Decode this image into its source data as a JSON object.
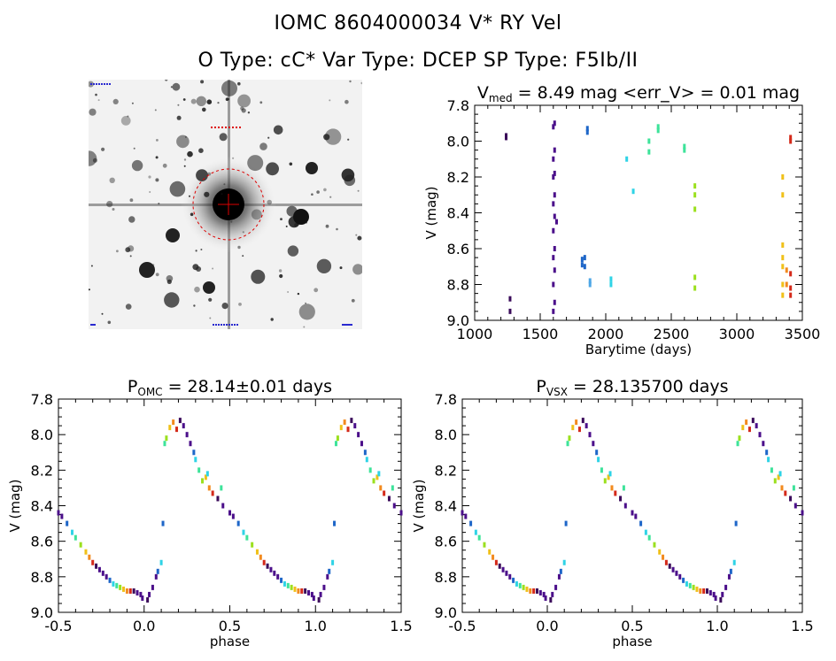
{
  "header": {
    "title": "IOMC 8604000034    V* RY Vel",
    "subtitle": "O Type: cC*   Var Type: DCEP   SP Type: F5Ib/II"
  },
  "sky_image": {
    "description": "finder chart"
  },
  "chart_data": [
    {
      "type": "scatter",
      "id": "lightcurve",
      "title": {
        "pre": "V",
        "sub": "med",
        "post": " = 8.49 mag <err_V> = 0.01 mag"
      },
      "xlabel": "Barytime (days)",
      "ylabel": "V (mag)",
      "xlim": [
        1000,
        3500
      ],
      "ylim": [
        9.0,
        7.8
      ],
      "xticks": [
        1000,
        1500,
        2000,
        2500,
        3000,
        3500
      ],
      "yticks": [
        7.8,
        8.0,
        8.2,
        8.4,
        8.6,
        8.8,
        9.0
      ],
      "groups": [
        {
          "x": 1240,
          "y": [
            7.97,
            7.98
          ],
          "color": "#3a0b5a"
        },
        {
          "x": 1270,
          "y": [
            8.88,
            8.95
          ],
          "color": "#3a0b5a"
        },
        {
          "x": 1600,
          "y": [
            7.92,
            8.1,
            8.2,
            8.35,
            8.5,
            8.65,
            8.8,
            8.95
          ],
          "color": "#4b0f8a"
        },
        {
          "x": 1610,
          "y": [
            7.9,
            8.05,
            8.18,
            8.3,
            8.42,
            8.6,
            8.72,
            8.9
          ],
          "color": "#4b0f8a"
        },
        {
          "x": 1625,
          "y": [
            8.45
          ],
          "color": "#4b0f8a"
        },
        {
          "x": 1820,
          "y": [
            8.66,
            8.69
          ],
          "color": "#1e66c8"
        },
        {
          "x": 1840,
          "y": [
            8.65,
            8.7
          ],
          "color": "#1e66c8"
        },
        {
          "x": 1860,
          "y": [
            7.93,
            7.95
          ],
          "color": "#1e66c8"
        },
        {
          "x": 1880,
          "y": [
            8.78,
            8.8
          ],
          "color": "#4ea7e6"
        },
        {
          "x": 2040,
          "y": [
            8.77,
            8.8
          ],
          "color": "#2fd3e6"
        },
        {
          "x": 2160,
          "y": [
            8.1
          ],
          "color": "#2fd3e6"
        },
        {
          "x": 2210,
          "y": [
            8.28
          ],
          "color": "#2fd3e6"
        },
        {
          "x": 2330,
          "y": [
            8.0,
            8.06
          ],
          "color": "#3de39a"
        },
        {
          "x": 2400,
          "y": [
            7.92,
            7.94
          ],
          "color": "#3de39a"
        },
        {
          "x": 2600,
          "y": [
            8.03,
            8.05
          ],
          "color": "#3de39a"
        },
        {
          "x": 2680,
          "y": [
            8.25,
            8.3,
            8.38,
            8.76,
            8.82
          ],
          "color": "#9be01e"
        },
        {
          "x": 3350,
          "y": [
            8.2,
            8.3,
            8.58,
            8.65,
            8.7,
            8.8,
            8.86
          ],
          "color": "#f0c018"
        },
        {
          "x": 3380,
          "y": [
            8.72,
            8.8
          ],
          "color": "#f28a1e"
        },
        {
          "x": 3410,
          "y": [
            7.98,
            8.0,
            8.74,
            8.82,
            8.86
          ],
          "color": "#d42a1a"
        }
      ]
    },
    {
      "type": "scatter",
      "id": "phase_omc",
      "title": {
        "pre": "P",
        "sub": "OMC",
        "post": " = 28.14±0.01 days"
      },
      "xlabel": "phase",
      "ylabel": "V (mag)",
      "xlim": [
        -0.5,
        1.5
      ],
      "ylim": [
        9.0,
        7.8
      ],
      "xticks": [
        -0.5,
        0.0,
        0.5,
        1.0,
        1.5
      ],
      "yticks": [
        7.8,
        8.0,
        8.2,
        8.4,
        8.6,
        8.8,
        9.0
      ],
      "period_points": [
        [
          0.02,
          8.93
        ],
        [
          0.03,
          8.9
        ],
        [
          0.05,
          8.86
        ],
        [
          0.07,
          8.8
        ],
        [
          0.08,
          8.77
        ],
        [
          0.1,
          8.72
        ],
        [
          0.12,
          8.05
        ],
        [
          0.13,
          8.02
        ],
        [
          0.15,
          7.96
        ],
        [
          0.17,
          7.93
        ],
        [
          0.19,
          7.97
        ],
        [
          0.21,
          7.92
        ],
        [
          0.23,
          7.95
        ],
        [
          0.25,
          8.0
        ],
        [
          0.27,
          8.05
        ],
        [
          0.29,
          8.1
        ],
        [
          0.3,
          8.14
        ],
        [
          0.32,
          8.2
        ],
        [
          0.34,
          8.26
        ],
        [
          0.36,
          8.24
        ],
        [
          0.38,
          8.3
        ],
        [
          0.4,
          8.33
        ],
        [
          0.43,
          8.36
        ],
        [
          0.46,
          8.4
        ],
        [
          0.5,
          8.44
        ],
        [
          0.52,
          8.46
        ],
        [
          0.55,
          8.5
        ],
        [
          0.58,
          8.55
        ],
        [
          0.6,
          8.58
        ],
        [
          0.63,
          8.62
        ],
        [
          0.66,
          8.66
        ],
        [
          0.68,
          8.69
        ],
        [
          0.7,
          8.72
        ],
        [
          0.72,
          8.74
        ],
        [
          0.74,
          8.76
        ],
        [
          0.76,
          8.78
        ],
        [
          0.78,
          8.8
        ],
        [
          0.8,
          8.82
        ],
        [
          0.82,
          8.84
        ],
        [
          0.84,
          8.85
        ],
        [
          0.86,
          8.86
        ],
        [
          0.88,
          8.87
        ],
        [
          0.9,
          8.88
        ],
        [
          0.92,
          8.88
        ],
        [
          0.94,
          8.88
        ],
        [
          0.96,
          8.89
        ],
        [
          0.98,
          8.9
        ],
        [
          0.99,
          8.92
        ],
        [
          0.11,
          8.5
        ],
        [
          0.37,
          8.22
        ],
        [
          0.45,
          8.3
        ]
      ]
    },
    {
      "type": "scatter",
      "id": "phase_vsx",
      "title": {
        "pre": "P",
        "sub": "VSX",
        "post": " = 28.135700 days"
      },
      "xlabel": "phase",
      "ylabel": "V (mag)",
      "xlim": [
        -0.5,
        1.5
      ],
      "ylim": [
        9.0,
        7.8
      ],
      "xticks": [
        -0.5,
        0.0,
        0.5,
        1.0,
        1.5
      ],
      "yticks": [
        7.8,
        8.0,
        8.2,
        8.4,
        8.6,
        8.8,
        9.0
      ],
      "period_points": "same-as:phase_omc"
    }
  ]
}
